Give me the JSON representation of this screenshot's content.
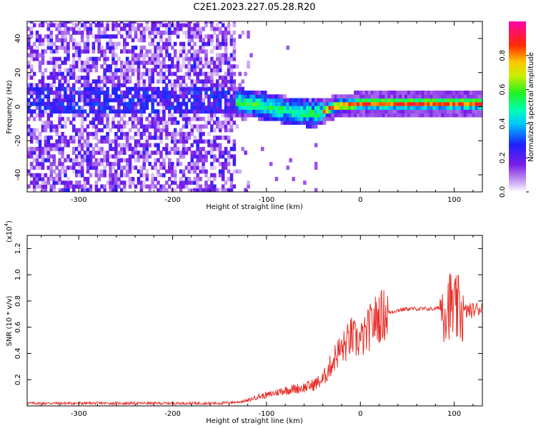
{
  "figure": {
    "title": "C2E1.2023.227.05.28.R20"
  },
  "colorbar": {
    "label": "Normalized spectral amplitude",
    "ticks": [
      "0.0",
      "0.2",
      "0.4",
      "0.6",
      "0.8"
    ],
    "tick_values": [
      0,
      0.2,
      0.4,
      0.6,
      0.8
    ],
    "range": [
      0,
      1
    ]
  },
  "chart_data": [
    {
      "type": "heatmap",
      "title": "",
      "xlabel": "Height of straight line (km)",
      "ylabel": "Frequency (Hz)",
      "xlim": [
        -355,
        130
      ],
      "ylim": [
        -50,
        50
      ],
      "x_ticks": [
        "-300",
        "-200",
        "-100",
        "0",
        "100"
      ],
      "x_tick_values": [
        -300,
        -200,
        -100,
        0,
        100
      ],
      "y_ticks": [
        "-40",
        "-20",
        "0",
        "20",
        "40"
      ],
      "y_tick_values": [
        -40,
        -20,
        0,
        20,
        40
      ],
      "colormap": "rainbow (purple→blue→cyan→green→yellow→red→magenta)",
      "description_regions": [
        {
          "x": [
            -355,
            -135
          ],
          "freq": [
            -50,
            50
          ],
          "amplitude": [
            0.05,
            0.3
          ]
        },
        {
          "x": [
            -150,
            -40
          ],
          "freq": [
            -12,
            6
          ],
          "amplitude": [
            0.2,
            0.6
          ]
        },
        {
          "x": [
            -40,
            130
          ],
          "freq": [
            -2,
            3
          ],
          "amplitude": [
            0.5,
            0.95
          ]
        }
      ],
      "signal_center_freq": {
        "x": [
          -150,
          -120,
          -100,
          -80,
          -60,
          -50,
          -40,
          -30,
          -20,
          -10,
          0,
          20,
          50,
          80,
          100,
          130
        ],
        "y": [
          3,
          1,
          -1,
          -3,
          -4.5,
          -5,
          -3.5,
          -1,
          0,
          0,
          1,
          1,
          1,
          1,
          1,
          1
        ]
      }
    },
    {
      "type": "line",
      "title": "",
      "xlabel": "Height of straight line (km)",
      "ylabel": "SNR (10 * v/v)",
      "y_multiplier": "(x10",
      "y_multiplier_exp": "4",
      "xlim": [
        -355,
        130
      ],
      "ylim": [
        0,
        1.3
      ],
      "x_ticks": [
        "-300",
        "-200",
        "-100",
        "0",
        "100"
      ],
      "x_tick_values": [
        -300,
        -200,
        -100,
        0,
        100
      ],
      "y_ticks": [
        "0.2",
        "0.4",
        "0.6",
        "0.8",
        "1.0",
        "1.2"
      ],
      "y_tick_values": [
        0.2,
        0.4,
        0.6,
        0.8,
        1.0,
        1.2
      ],
      "color": "#e8302a",
      "series": [
        {
          "x": [
            -355,
            -300,
            -250,
            -200,
            -150,
            -130,
            -120,
            -110,
            -100,
            -90,
            -80,
            -70,
            -60,
            -50,
            -40,
            -30,
            -25,
            -20,
            -15,
            -10,
            -5,
            0,
            5,
            10,
            15,
            20,
            30,
            40,
            50,
            60,
            70,
            80,
            85,
            90,
            95,
            100,
            105,
            110,
            120,
            130
          ],
          "y": [
            0.02,
            0.02,
            0.02,
            0.02,
            0.02,
            0.03,
            0.04,
            0.07,
            0.08,
            0.1,
            0.12,
            0.13,
            0.14,
            0.16,
            0.2,
            0.33,
            0.4,
            0.43,
            0.47,
            0.53,
            0.5,
            0.5,
            0.53,
            0.6,
            0.65,
            0.68,
            0.71,
            0.73,
            0.74,
            0.74,
            0.74,
            0.74,
            0.75,
            0.76,
            0.78,
            0.72,
            0.73,
            0.72,
            0.73,
            0.75
          ]
        }
      ]
    }
  ]
}
